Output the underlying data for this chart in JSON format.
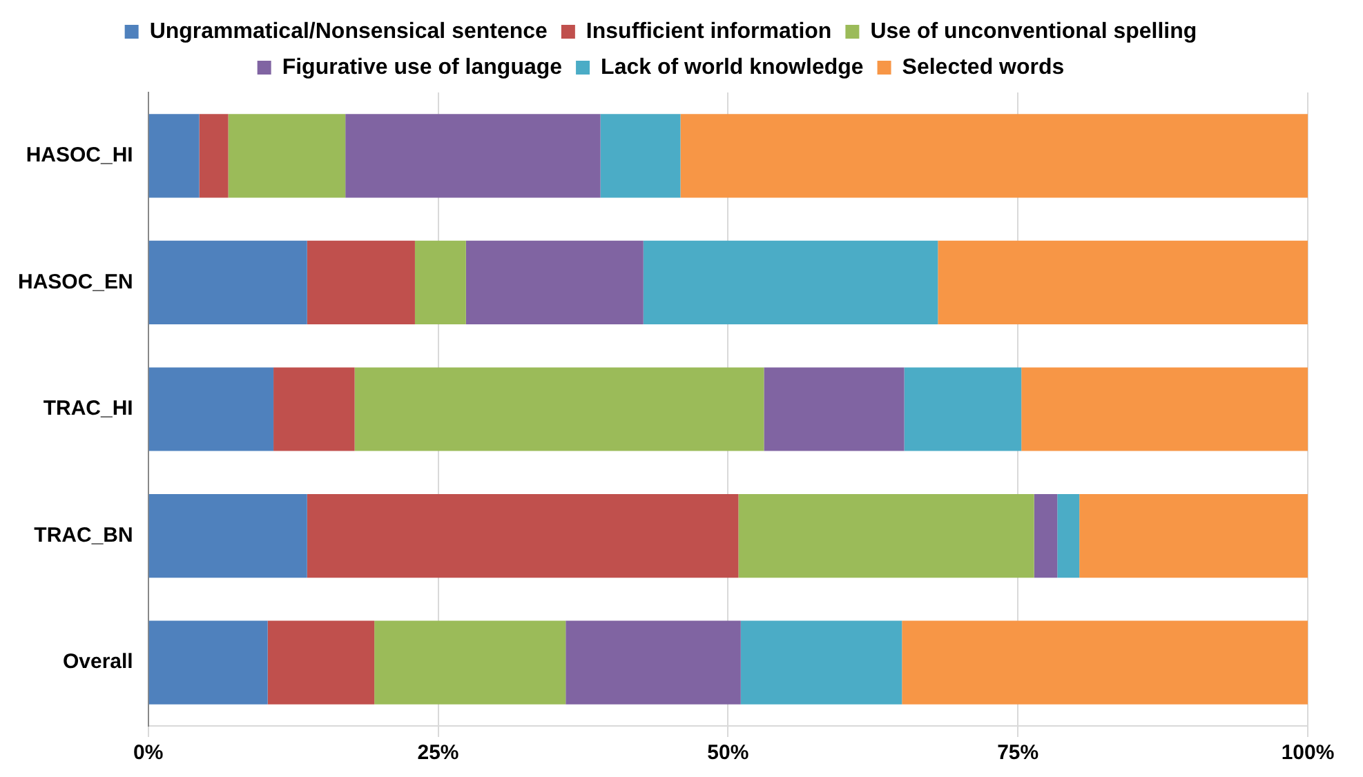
{
  "chart_data": {
    "type": "bar",
    "orientation": "horizontal",
    "stacked": true,
    "categories": [
      "HASOC_HI",
      "HASOC_EN",
      "TRAC_HI",
      "TRAC_BN",
      "Overall"
    ],
    "series": [
      {
        "name": "Ungrammatical/Nonsensical sentence",
        "color": "#4f81bd",
        "values": [
          4.4,
          13.7,
          10.8,
          13.7,
          10.3
        ]
      },
      {
        "name": "Insufficient information",
        "color": "#c0504d",
        "values": [
          2.5,
          9.3,
          7.0,
          37.2,
          9.2
        ]
      },
      {
        "name": "Use of unconventional spelling",
        "color": "#9bbb59",
        "values": [
          10.1,
          4.4,
          35.3,
          25.5,
          16.5
        ]
      },
      {
        "name": "Figurative use of language",
        "color": "#8064a2",
        "values": [
          22.0,
          15.3,
          12.1,
          2.0,
          15.1
        ]
      },
      {
        "name": "Lack of world knowledge",
        "color": "#4bacc6",
        "values": [
          6.9,
          25.4,
          10.1,
          1.9,
          13.9
        ]
      },
      {
        "name": "Selected words",
        "color": "#f79646",
        "values": [
          54.1,
          31.9,
          24.7,
          19.7,
          35.0
        ]
      }
    ],
    "xlim": [
      0,
      100
    ],
    "xticks": [
      {
        "value": 0,
        "label": "0%"
      },
      {
        "value": 25,
        "label": "25%"
      },
      {
        "value": 50,
        "label": "50%"
      },
      {
        "value": 75,
        "label": "75%"
      },
      {
        "value": 100,
        "label": "100%"
      }
    ],
    "grid": "x",
    "legend": "top"
  }
}
